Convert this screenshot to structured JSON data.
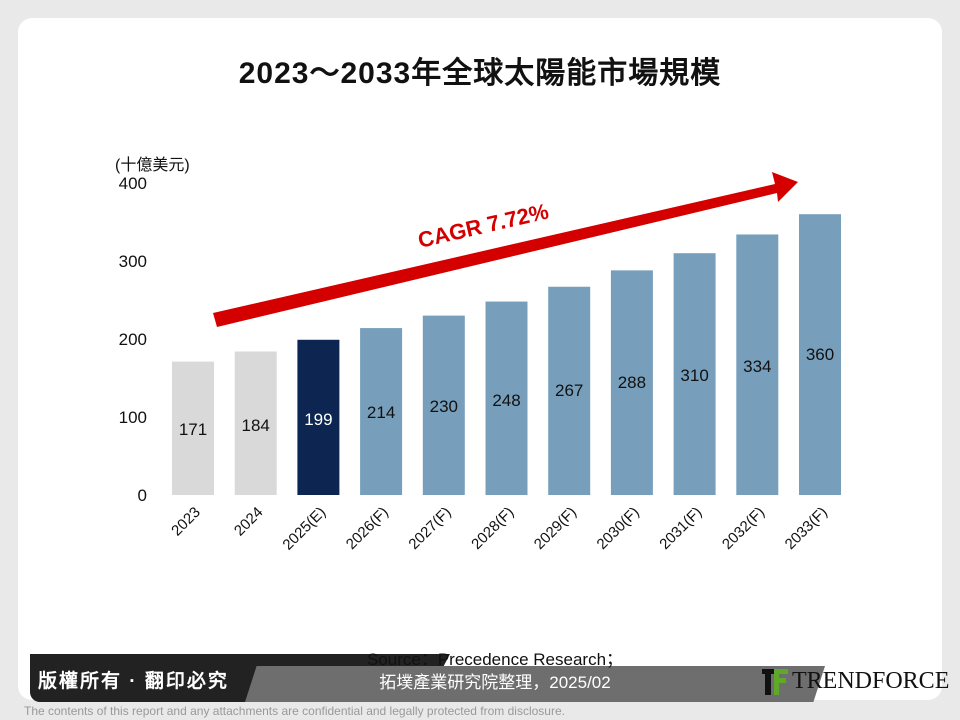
{
  "footer": {
    "copyright": "版權所有 · 翻印必究",
    "source_line1": "Source：Precedence Research；",
    "source_line2": "拓墣產業研究院整理，2025/02",
    "logo": "TRENDFORCE",
    "disclaimer": "The contents of this report and any attachments are confidential and legally protected from disclosure."
  },
  "chart_data": {
    "type": "bar",
    "title": "2023～2033年全球太陽能市場規模",
    "ylabel": "(十億美元)",
    "ylim": [
      0,
      400
    ],
    "yticks": [
      "0",
      "100",
      "200",
      "300",
      "400"
    ],
    "categories": [
      "2023",
      "2024",
      "2025(E)",
      "2026(F)",
      "2027(F)",
      "2028(F)",
      "2029(F)",
      "2030(F)",
      "2031(F)",
      "2032(F)",
      "2033(F)"
    ],
    "values": [
      171,
      184,
      199,
      214,
      230,
      248,
      267,
      288,
      310,
      334,
      360
    ],
    "annotation": "CAGR 7.72%",
    "grid": false,
    "colors": {
      "actual": "#d9d9d9",
      "estimate": "#0d2651",
      "forecast": "#779fbb",
      "arrow": "#d40000"
    }
  }
}
